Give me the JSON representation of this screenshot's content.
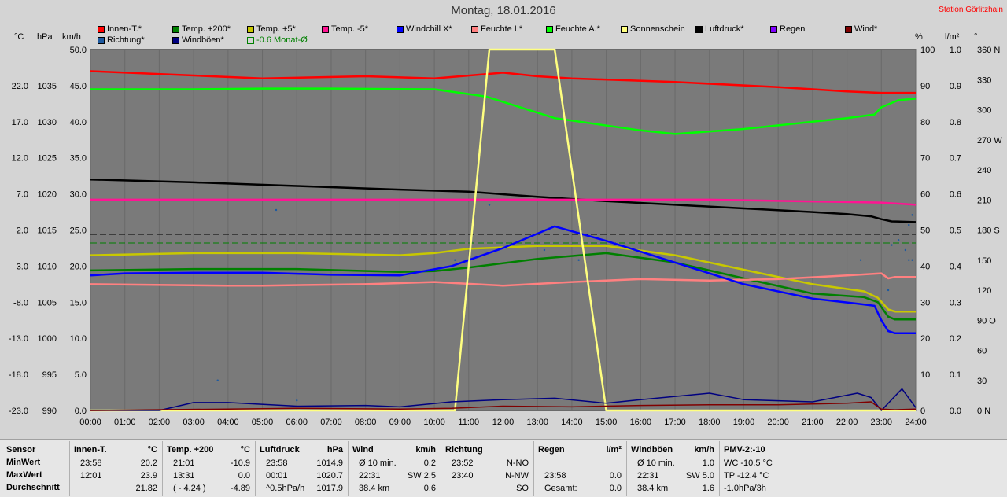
{
  "title": "Montag, 18.01.2016",
  "station": "Station Görlitzhain",
  "legend": [
    {
      "label": "Innen-T.*",
      "color": "#ff0000"
    },
    {
      "label": "Temp. +200*",
      "color": "#008000"
    },
    {
      "label": "Temp. +5*",
      "color": "#c8c800"
    },
    {
      "label": "Temp. -5*",
      "color": "#ff1493"
    },
    {
      "label": "Windchill X*",
      "color": "#0000ff"
    },
    {
      "label": "Feuchte I.*",
      "color": "#ff8080"
    },
    {
      "label": "Feuchte A.*",
      "color": "#00ff00"
    },
    {
      "label": "Sonnenschein",
      "color": "#ffff80"
    },
    {
      "label": "Luftdruck*",
      "color": "#000000"
    },
    {
      "label": "Regen",
      "color": "#8000ff"
    },
    {
      "label": "Wind*",
      "color": "#800000"
    },
    {
      "label": "Richtung*",
      "color": "#1e5aa0"
    },
    {
      "label": "Windböen*",
      "color": "#000080"
    },
    {
      "label": "-0.6 Monat-Ø",
      "color": "#008000",
      "hollow": true
    }
  ],
  "units": {
    "celsius": "°C",
    "hpa": "hPa",
    "kmh": "km/h",
    "percent": "%",
    "lm2": "l/m²",
    "deg": "°"
  },
  "chart_data": {
    "type": "line",
    "x_ticks": [
      "00:00",
      "01:00",
      "02:00",
      "03:00",
      "04:00",
      "05:00",
      "06:00",
      "07:00",
      "08:00",
      "09:00",
      "10:00",
      "11:00",
      "12:00",
      "13:00",
      "14:00",
      "15:00",
      "16:00",
      "17:00",
      "18:00",
      "19:00",
      "20:00",
      "21:00",
      "22:00",
      "23:00",
      "24:00"
    ],
    "axes": {
      "celsius": [
        "22.0",
        "17.0",
        "12.0",
        "7.0",
        "2.0",
        "-3.0",
        "-8.0",
        "-13.0",
        "-18.0",
        "-23.0"
      ],
      "hpa": [
        "1035",
        "1030",
        "1025",
        "1020",
        "1015",
        "1010",
        "1005",
        "1000",
        "995",
        "990"
      ],
      "kmh": [
        "50.0",
        "45.0",
        "40.0",
        "35.0",
        "30.0",
        "25.0",
        "20.0",
        "15.0",
        "10.0",
        "5.0",
        "0.0"
      ],
      "percent": [
        "100",
        "90",
        "80",
        "70",
        "60",
        "50",
        "40",
        "30",
        "20",
        "10",
        "0"
      ],
      "lm2": [
        "1.0",
        "0.9",
        "0.8",
        "0.7",
        "0.6",
        "0.5",
        "0.4",
        "0.3",
        "0.2",
        "0.1",
        "0.0"
      ],
      "deg": [
        "360 N",
        "330",
        "300",
        "270 W",
        "240",
        "210",
        "180 S",
        "150",
        "120",
        "90 O",
        "60",
        "30",
        "0 N"
      ]
    },
    "kmh_range": [
      0,
      50
    ],
    "series": [
      {
        "name": "Innen-T.*",
        "color": "#ff0000",
        "x": [
          0,
          3,
          5,
          8,
          10,
          12,
          13,
          14,
          17,
          20,
          22,
          23,
          23.4,
          24
        ],
        "y": [
          47.0,
          46.4,
          46.0,
          46.3,
          46.0,
          46.8,
          46.3,
          46.0,
          45.5,
          44.8,
          44.2,
          44.0,
          44.0,
          44.0
        ]
      },
      {
        "name": "Feuchte A.*",
        "color": "#00ff00",
        "x": [
          0,
          3,
          5,
          7,
          10,
          11.5,
          13.5,
          16,
          17,
          19,
          21,
          22,
          22.8,
          23,
          23.5,
          24
        ],
        "y": [
          44.5,
          44.5,
          44.6,
          44.6,
          44.5,
          43.5,
          40.5,
          38.8,
          38.3,
          39.0,
          40.0,
          40.5,
          41.0,
          42.0,
          43.0,
          43.2
        ]
      },
      {
        "name": "Luftdruck*",
        "color": "#000000",
        "x": [
          0,
          3,
          6,
          9,
          11,
          13,
          15,
          17,
          19,
          21,
          22,
          22.7,
          23,
          23.3,
          24
        ],
        "y": [
          32.0,
          31.6,
          31.1,
          30.6,
          30.3,
          29.6,
          29.0,
          28.5,
          28.0,
          27.5,
          27.2,
          26.9,
          26.5,
          26.2,
          26.1
        ]
      },
      {
        "name": "Temp. -5*",
        "color": "#ff1493",
        "x": [
          0,
          6,
          12,
          18,
          23,
          24
        ],
        "y": [
          29.2,
          29.2,
          29.2,
          29.2,
          28.8,
          28.5
        ]
      },
      {
        "name": "Temp. +5*",
        "color": "#c8c800",
        "x": [
          0,
          3,
          6,
          9,
          10,
          11,
          13,
          15,
          17,
          19,
          21,
          22.5,
          22.9,
          23.2,
          23.4,
          24
        ],
        "y": [
          21.5,
          21.8,
          21.8,
          21.5,
          21.8,
          22.4,
          22.8,
          22.8,
          21.5,
          19.5,
          17.5,
          16.5,
          15.6,
          14.0,
          13.7,
          13.7
        ]
      },
      {
        "name": "Temp. +200*",
        "color": "#008000",
        "x": [
          0,
          3,
          6,
          9,
          10,
          11,
          13,
          15,
          17,
          19,
          21,
          22.5,
          22.9,
          23.2,
          23.4,
          24
        ],
        "y": [
          19.4,
          19.6,
          19.6,
          19.2,
          19.3,
          19.8,
          21.0,
          21.8,
          20.5,
          18.3,
          16.2,
          15.7,
          15.0,
          13.0,
          12.6,
          12.6
        ]
      },
      {
        "name": "Feuchte I.*",
        "color": "#ff8080",
        "x": [
          0,
          4,
          5,
          8,
          10,
          12,
          14,
          16,
          18,
          20,
          22,
          23,
          23.2,
          23.4,
          24
        ],
        "y": [
          17.5,
          17.3,
          17.3,
          17.5,
          17.8,
          17.3,
          17.8,
          18.2,
          18.0,
          18.2,
          18.7,
          19.0,
          18.3,
          18.5,
          18.5
        ]
      },
      {
        "name": "Windchill X*",
        "color": "#0000ff",
        "x": [
          0,
          1,
          3,
          5,
          7,
          9,
          10.5,
          12,
          13.5,
          15,
          17,
          19,
          21,
          22.3,
          22.8,
          23,
          23.2,
          23.4,
          24
        ],
        "y": [
          18.7,
          19.0,
          19.1,
          19.1,
          18.8,
          18.7,
          20.0,
          22.5,
          25.5,
          23.5,
          20.5,
          17.5,
          15.5,
          14.8,
          14.5,
          12.5,
          11.0,
          10.7,
          10.7
        ]
      },
      {
        "name": "Sonnenschein",
        "color": "#ffff80",
        "x": [
          0,
          10.6,
          11.6,
          13.5,
          15.0,
          24
        ],
        "y": [
          0,
          0,
          50,
          50,
          0,
          0
        ]
      },
      {
        "name": "Windböen*",
        "color": "#000080",
        "x": [
          0,
          2,
          3,
          4,
          6,
          8,
          9,
          10.5,
          12,
          13.5,
          15,
          16,
          18,
          19,
          21,
          22.3,
          22.7,
          23,
          23.3,
          23.6,
          24
        ],
        "y": [
          0,
          0,
          1.1,
          1.1,
          0.6,
          0.7,
          0.5,
          1.2,
          1.5,
          1.7,
          1.0,
          1.5,
          2.4,
          1.5,
          1.2,
          2.4,
          1.8,
          0,
          1.5,
          3.0,
          0.4
        ]
      },
      {
        "name": "Wind*",
        "color": "#800000",
        "x": [
          0,
          4,
          6,
          9,
          10.5,
          12,
          14,
          16,
          18,
          20,
          22,
          22.7,
          23,
          23.4,
          24
        ],
        "y": [
          0,
          0.2,
          0.3,
          0.2,
          0.3,
          0.6,
          0.5,
          0.7,
          0.8,
          0.8,
          1.0,
          1.2,
          0.2,
          0.1,
          0.2
        ]
      }
    ],
    "dashed_lines": [
      {
        "y": 24.4,
        "color": "#000000"
      },
      {
        "y": 23.2,
        "color": "#008000"
      }
    ],
    "direction_points_deg": [
      [
        3.7,
        30
      ],
      [
        10.6,
        150
      ],
      [
        14.2,
        150
      ],
      [
        11.6,
        205
      ],
      [
        6.0,
        10
      ],
      [
        5.4,
        200
      ],
      [
        13.2,
        160
      ],
      [
        22.4,
        150
      ],
      [
        23.2,
        120
      ],
      [
        23.3,
        165
      ],
      [
        23.5,
        170
      ],
      [
        23.7,
        160
      ],
      [
        23.8,
        150
      ],
      [
        23.9,
        150
      ],
      [
        23.8,
        185
      ],
      [
        23.9,
        195
      ]
    ]
  },
  "stats": {
    "sensor": {
      "header": "Sensor",
      "rows": [
        "MinWert",
        "MaxWert",
        "Durchschnitt"
      ]
    },
    "innen": {
      "header": "Innen-T.",
      "unit": "°C",
      "rows": [
        [
          "23:58",
          "20.2"
        ],
        [
          "12:01",
          "23.9"
        ],
        [
          "",
          "21.82"
        ]
      ]
    },
    "temp200": {
      "header": "Temp. +200",
      "unit": "°C",
      "rows": [
        [
          "21:01",
          "-10.9"
        ],
        [
          "13:31",
          "0.0"
        ],
        [
          "( - 4.24 )",
          "-4.89"
        ]
      ]
    },
    "luftdruck": {
      "header": "Luftdruck",
      "unit": "hPa",
      "rows": [
        [
          "23:58",
          "1014.9"
        ],
        [
          "00:01",
          "1020.7"
        ],
        [
          "^0.5hPa/h",
          "1017.9"
        ]
      ]
    },
    "wind": {
      "header": "Wind",
      "unit": "km/h",
      "rows": [
        [
          "Ø 10 min.",
          "0.2"
        ],
        [
          "22:31",
          "SW 2.5"
        ],
        [
          "38.4 km",
          "0.6"
        ]
      ]
    },
    "richtung": {
      "header": "Richtung",
      "unit": "",
      "rows": [
        [
          "23:52",
          "N-NO"
        ],
        [
          "23:40",
          "N-NW"
        ],
        [
          "",
          "SO"
        ]
      ]
    },
    "regen": {
      "header": "Regen",
      "unit": "l/m²",
      "rows": [
        [
          "",
          ""
        ],
        [
          "23:58",
          "0.0"
        ],
        [
          "Gesamt:",
          "0.0"
        ]
      ]
    },
    "windboen": {
      "header": "Windböen",
      "unit": "km/h",
      "rows": [
        [
          "Ø 10 min.",
          "1.0"
        ],
        [
          "22:31",
          "SW 5.0"
        ],
        [
          "38.4 km",
          "1.6"
        ]
      ]
    },
    "pmv": {
      "header": "PMV-2:-10",
      "rows": [
        "WC -10.5 °C",
        "TP -12.4 °C",
        "-1.0hPa/3h"
      ]
    }
  }
}
